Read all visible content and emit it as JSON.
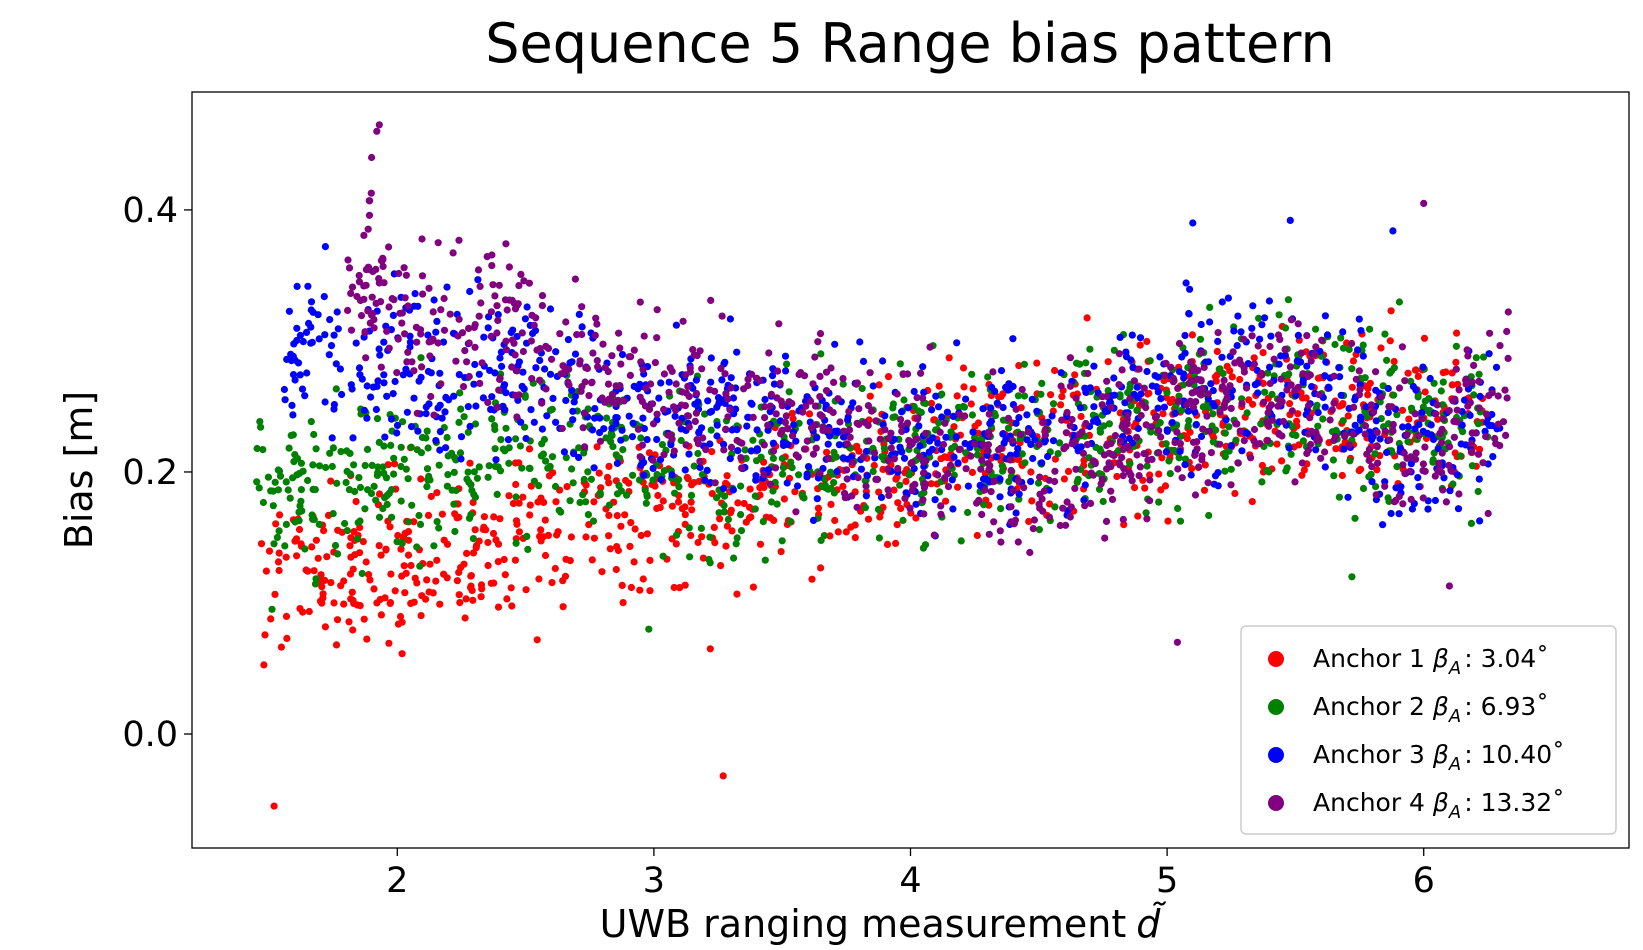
{
  "chart_data": {
    "type": "scatter",
    "title": "Sequence 5 Range bias pattern",
    "xlabel": "UWB ranging measurement",
    "xlabel_symbol": "d̃",
    "ylabel": "Bias [m]",
    "xlim": [
      1.2,
      6.8
    ],
    "ylim": [
      -0.087,
      0.49
    ],
    "xticks": [
      2,
      3,
      4,
      5,
      6
    ],
    "yticks": [
      0.0,
      0.2,
      0.4
    ],
    "xtick_labels": [
      "2",
      "3",
      "4",
      "5",
      "6"
    ],
    "ytick_labels": [
      "0.0",
      "0.2",
      "0.4"
    ],
    "grid": false,
    "legend_position": "lower-right",
    "series": [
      {
        "name": "Anchor 1",
        "legend_prefix": "Anchor 1",
        "legend_beta": "β",
        "legend_sub": "A",
        "legend_value": ": 3.04˚",
        "color": "#ff0000",
        "x_range": [
          1.47,
          6.23
        ],
        "trend": [
          [
            1.5,
            0.115
          ],
          [
            2.0,
            0.125
          ],
          [
            2.5,
            0.16
          ],
          [
            3.0,
            0.17
          ],
          [
            3.5,
            0.185
          ],
          [
            4.0,
            0.21
          ],
          [
            4.5,
            0.225
          ],
          [
            5.0,
            0.24
          ],
          [
            5.5,
            0.25
          ],
          [
            6.0,
            0.245
          ],
          [
            6.25,
            0.24
          ]
        ],
        "spread": 0.055,
        "outliers": [
          [
            1.52,
            -0.055
          ],
          [
            3.27,
            -0.032
          ],
          [
            1.57,
            0.073
          ],
          [
            3.22,
            0.065
          ]
        ]
      },
      {
        "name": "Anchor 2",
        "legend_prefix": "Anchor 2",
        "legend_beta": "β",
        "legend_sub": "A",
        "legend_value": ": 6.93˚",
        "color": "#008000",
        "x_range": [
          1.45,
          6.25
        ],
        "trend": [
          [
            1.45,
            0.2
          ],
          [
            1.6,
            0.19
          ],
          [
            2.0,
            0.2
          ],
          [
            2.5,
            0.215
          ],
          [
            3.0,
            0.205
          ],
          [
            3.3,
            0.195
          ],
          [
            3.5,
            0.21
          ],
          [
            4.0,
            0.215
          ],
          [
            4.5,
            0.225
          ],
          [
            5.0,
            0.24
          ],
          [
            5.5,
            0.255
          ],
          [
            6.0,
            0.235
          ],
          [
            6.25,
            0.23
          ]
        ],
        "spread": 0.06,
        "outliers": [
          [
            2.98,
            0.08
          ],
          [
            5.72,
            0.12
          ]
        ]
      },
      {
        "name": "Anchor 3",
        "legend_prefix": "Anchor 3",
        "legend_beta": "β",
        "legend_sub": "A",
        "legend_value": ": 10.40˚",
        "color": "#0000ff",
        "x_range": [
          1.55,
          6.3
        ],
        "trend": [
          [
            1.55,
            0.26
          ],
          [
            1.65,
            0.31
          ],
          [
            1.8,
            0.28
          ],
          [
            2.0,
            0.27
          ],
          [
            2.5,
            0.275
          ],
          [
            3.0,
            0.24
          ],
          [
            3.5,
            0.23
          ],
          [
            4.0,
            0.225
          ],
          [
            4.5,
            0.23
          ],
          [
            5.0,
            0.265
          ],
          [
            5.5,
            0.27
          ],
          [
            6.0,
            0.22
          ],
          [
            6.3,
            0.24
          ]
        ],
        "spread": 0.055,
        "outliers": [
          [
            1.72,
            0.372
          ],
          [
            5.48,
            0.392
          ],
          [
            5.1,
            0.39
          ],
          [
            5.88,
            0.384
          ]
        ]
      },
      {
        "name": "Anchor 4",
        "legend_prefix": "Anchor 4",
        "legend_beta": "β",
        "legend_sub": "A",
        "legend_value": ": 13.32˚",
        "color": "#800080",
        "x_range": [
          1.8,
          6.33
        ],
        "trend": [
          [
            1.8,
            0.33
          ],
          [
            1.9,
            0.36
          ],
          [
            2.0,
            0.31
          ],
          [
            2.5,
            0.3
          ],
          [
            3.0,
            0.26
          ],
          [
            3.5,
            0.25
          ],
          [
            4.0,
            0.215
          ],
          [
            4.5,
            0.195
          ],
          [
            5.0,
            0.245
          ],
          [
            5.5,
            0.265
          ],
          [
            6.0,
            0.215
          ],
          [
            6.3,
            0.25
          ]
        ],
        "spread": 0.055,
        "outliers": [
          [
            1.93,
            0.465
          ],
          [
            1.92,
            0.46
          ],
          [
            1.9,
            0.44
          ],
          [
            5.04,
            0.07
          ],
          [
            6.0,
            0.405
          ],
          [
            6.1,
            0.113
          ]
        ]
      }
    ]
  }
}
